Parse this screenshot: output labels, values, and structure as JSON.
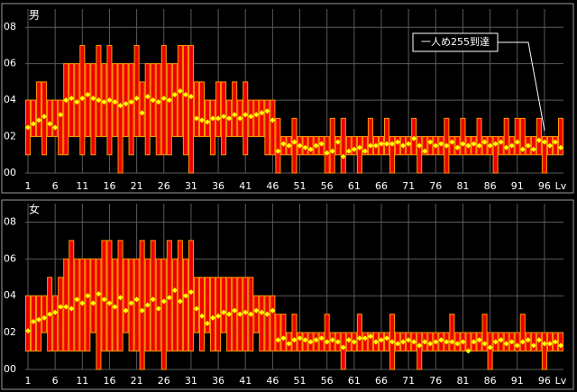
{
  "chart_data": [
    {
      "type": "range",
      "title": "男",
      "x_label": "Lv",
      "annotation": "一人め255到達",
      "bar_color": "#ee0000",
      "edge_color": "#ff9900",
      "marker_color": "#ffff00",
      "grid": true,
      "xlim": [
        0.5,
        99.5
      ],
      "xticks": [
        1,
        6,
        11,
        16,
        21,
        26,
        31,
        36,
        41,
        46,
        51,
        56,
        61,
        66,
        71,
        76,
        81,
        86,
        91,
        96
      ],
      "ylim": [
        0,
        9
      ],
      "yticks": [
        {
          "value": 0,
          "label": "00"
        },
        {
          "value": 2,
          "label": "02"
        },
        {
          "value": 4,
          "label": "04"
        },
        {
          "value": 6,
          "label": "06"
        },
        {
          "value": 8,
          "label": "08"
        }
      ],
      "x": [
        1,
        2,
        3,
        4,
        5,
        6,
        7,
        8,
        9,
        10,
        11,
        12,
        13,
        14,
        15,
        16,
        17,
        18,
        19,
        20,
        21,
        22,
        23,
        24,
        25,
        26,
        27,
        28,
        29,
        30,
        31,
        32,
        33,
        34,
        35,
        36,
        37,
        38,
        39,
        40,
        41,
        42,
        43,
        44,
        45,
        46,
        47,
        48,
        49,
        50,
        51,
        52,
        53,
        54,
        55,
        56,
        57,
        58,
        59,
        60,
        61,
        62,
        63,
        64,
        65,
        66,
        67,
        68,
        69,
        70,
        71,
        72,
        73,
        74,
        75,
        76,
        77,
        78,
        79,
        80,
        81,
        82,
        83,
        84,
        85,
        86,
        87,
        88,
        89,
        90,
        91,
        92,
        93,
        94,
        95,
        96,
        97,
        98,
        99
      ],
      "high": [
        4,
        4,
        5,
        5,
        4,
        4,
        4,
        6,
        6,
        6,
        7,
        6,
        6,
        7,
        6,
        7,
        6,
        6,
        6,
        6,
        7,
        5,
        6,
        6,
        6,
        7,
        6,
        6,
        7,
        7,
        7,
        5,
        5,
        4,
        4,
        5,
        5,
        4,
        5,
        4,
        5,
        4,
        4,
        4,
        4,
        4,
        3,
        2,
        2,
        3,
        2,
        2,
        2,
        2,
        2,
        2,
        3,
        2,
        3,
        2,
        2,
        2,
        2,
        3,
        2,
        2,
        3,
        2,
        2,
        2,
        2,
        3,
        2,
        2,
        2,
        2,
        2,
        3,
        2,
        2,
        3,
        2,
        2,
        3,
        2,
        2,
        2,
        2,
        3,
        2,
        3,
        3,
        2,
        2,
        3,
        2,
        2,
        2,
        3
      ],
      "low": [
        1,
        2,
        2,
        1,
        2,
        2,
        1,
        1,
        2,
        2,
        1,
        2,
        1,
        2,
        2,
        1,
        2,
        0,
        2,
        1,
        2,
        2,
        1,
        2,
        1,
        1,
        1,
        2,
        2,
        1,
        0,
        2,
        2,
        2,
        1,
        2,
        1,
        2,
        2,
        2,
        1,
        2,
        2,
        2,
        1,
        1,
        0,
        1,
        1,
        0,
        1,
        1,
        1,
        1,
        1,
        0,
        0,
        1,
        0,
        1,
        1,
        0,
        1,
        1,
        1,
        1,
        1,
        0,
        1,
        1,
        1,
        1,
        0,
        1,
        1,
        1,
        1,
        0,
        1,
        1,
        1,
        1,
        1,
        1,
        1,
        1,
        0,
        1,
        1,
        1,
        1,
        1,
        1,
        1,
        1,
        0,
        1,
        1,
        1
      ],
      "mean": [
        2.5,
        2.7,
        2.9,
        3.1,
        2.7,
        2.5,
        3.2,
        4.0,
        4.1,
        3.9,
        4.1,
        4.3,
        4.1,
        4.0,
        3.9,
        4.0,
        3.9,
        3.7,
        3.8,
        3.9,
        4.1,
        3.3,
        4.2,
        4.0,
        3.9,
        4.1,
        4.0,
        4.3,
        4.5,
        4.3,
        4.2,
        3.0,
        2.9,
        2.8,
        3.0,
        3.0,
        3.1,
        3.0,
        3.2,
        3.0,
        3.2,
        3.1,
        3.2,
        3.3,
        3.4,
        2.9,
        1.2,
        1.6,
        1.5,
        1.7,
        1.5,
        1.4,
        1.3,
        1.5,
        1.6,
        1.1,
        1.2,
        1.7,
        0.9,
        1.2,
        1.3,
        1.4,
        1.2,
        1.5,
        1.5,
        1.6,
        1.6,
        1.6,
        1.7,
        1.5,
        1.6,
        1.9,
        1.5,
        1.2,
        1.7,
        1.5,
        1.6,
        1.5,
        1.7,
        1.4,
        1.6,
        1.5,
        1.6,
        1.5,
        1.7,
        1.5,
        1.6,
        1.7,
        1.4,
        1.5,
        1.7,
        1.3,
        1.5,
        1.3,
        1.8,
        1.7,
        1.5,
        1.7,
        1.4
      ]
    },
    {
      "type": "range",
      "title": "女",
      "x_label": "Lv",
      "bar_color": "#ee0000",
      "edge_color": "#ff9900",
      "marker_color": "#ffff00",
      "grid": true,
      "xlim": [
        0.5,
        99.5
      ],
      "xticks": [
        1,
        6,
        11,
        16,
        21,
        26,
        31,
        36,
        41,
        46,
        51,
        56,
        61,
        66,
        71,
        76,
        81,
        86,
        91,
        96
      ],
      "ylim": [
        0,
        9
      ],
      "yticks": [
        {
          "value": 0,
          "label": "00"
        },
        {
          "value": 2,
          "label": "02"
        },
        {
          "value": 4,
          "label": "04"
        },
        {
          "value": 6,
          "label": "06"
        },
        {
          "value": 8,
          "label": "08"
        }
      ],
      "x": [
        1,
        2,
        3,
        4,
        5,
        6,
        7,
        8,
        9,
        10,
        11,
        12,
        13,
        14,
        15,
        16,
        17,
        18,
        19,
        20,
        21,
        22,
        23,
        24,
        25,
        26,
        27,
        28,
        29,
        30,
        31,
        32,
        33,
        34,
        35,
        36,
        37,
        38,
        39,
        40,
        41,
        42,
        43,
        44,
        45,
        46,
        47,
        48,
        49,
        50,
        51,
        52,
        53,
        54,
        55,
        56,
        57,
        58,
        59,
        60,
        61,
        62,
        63,
        64,
        65,
        66,
        67,
        68,
        69,
        70,
        71,
        72,
        73,
        74,
        75,
        76,
        77,
        78,
        79,
        80,
        81,
        82,
        83,
        84,
        85,
        86,
        87,
        88,
        89,
        90,
        91,
        92,
        93,
        94,
        95,
        96,
        97,
        98,
        99
      ],
      "high": [
        4,
        4,
        4,
        4,
        5,
        4,
        5,
        6,
        7,
        6,
        6,
        6,
        6,
        6,
        7,
        7,
        6,
        7,
        6,
        6,
        6,
        7,
        6,
        7,
        6,
        6,
        7,
        6,
        7,
        6,
        7,
        5,
        5,
        5,
        5,
        5,
        5,
        5,
        5,
        5,
        5,
        5,
        4,
        4,
        4,
        4,
        3,
        3,
        2,
        3,
        2,
        2,
        2,
        2,
        2,
        3,
        2,
        2,
        2,
        2,
        2,
        3,
        2,
        2,
        2,
        2,
        2,
        3,
        2,
        2,
        2,
        2,
        2,
        2,
        2,
        2,
        2,
        2,
        3,
        2,
        2,
        2,
        2,
        2,
        3,
        2,
        2,
        2,
        2,
        2,
        2,
        3,
        2,
        2,
        2,
        2,
        2,
        2,
        2
      ],
      "low": [
        1,
        1,
        1,
        2,
        1,
        1,
        1,
        1,
        1,
        1,
        1,
        1,
        2,
        0,
        1,
        1,
        1,
        1,
        2,
        1,
        1,
        0,
        1,
        1,
        1,
        0,
        1,
        1,
        1,
        1,
        1,
        2,
        1,
        2,
        1,
        1,
        2,
        1,
        1,
        1,
        1,
        1,
        2,
        1,
        1,
        1,
        1,
        1,
        1,
        1,
        1,
        1,
        1,
        1,
        1,
        1,
        1,
        1,
        0,
        1,
        1,
        1,
        1,
        1,
        1,
        1,
        1,
        0,
        1,
        1,
        1,
        1,
        0,
        1,
        1,
        1,
        1,
        1,
        1,
        1,
        1,
        1,
        1,
        1,
        1,
        0,
        1,
        1,
        1,
        1,
        1,
        1,
        1,
        1,
        1,
        0,
        1,
        1,
        1
      ],
      "mean": [
        2.1,
        2.6,
        2.7,
        2.8,
        3.0,
        3.1,
        3.4,
        3.4,
        3.3,
        3.8,
        3.6,
        4.0,
        3.6,
        4.1,
        3.8,
        3.6,
        3.4,
        3.9,
        3.2,
        3.6,
        3.8,
        3.2,
        3.5,
        3.8,
        3.3,
        3.7,
        3.9,
        4.3,
        3.7,
        4.0,
        4.2,
        3.3,
        2.9,
        2.5,
        2.8,
        2.9,
        3.1,
        3.0,
        3.2,
        3.0,
        3.1,
        3.0,
        3.2,
        3.1,
        3.0,
        3.2,
        1.6,
        1.7,
        1.4,
        1.6,
        1.7,
        1.6,
        1.5,
        1.6,
        1.7,
        1.5,
        1.6,
        1.5,
        1.2,
        1.6,
        1.5,
        1.7,
        1.7,
        1.8,
        1.5,
        1.6,
        1.7,
        1.5,
        1.4,
        1.5,
        1.6,
        1.5,
        1.3,
        1.5,
        1.4,
        1.5,
        1.6,
        1.5,
        1.5,
        1.4,
        1.5,
        1.0,
        1.5,
        1.6,
        1.4,
        1.2,
        1.5,
        1.6,
        1.4,
        1.5,
        1.3,
        1.5,
        1.6,
        1.3,
        1.6,
        1.4,
        1.4,
        1.5,
        1.3
      ]
    }
  ]
}
